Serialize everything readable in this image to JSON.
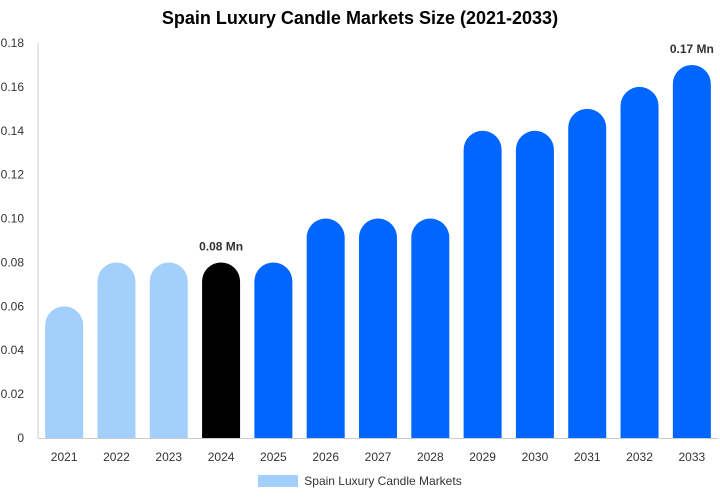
{
  "chart_data": {
    "type": "bar",
    "title": "Spain Luxury Candle Markets Size (2021-2033)",
    "xlabel": "",
    "ylabel": "",
    "categories": [
      "2021",
      "2022",
      "2023",
      "2024",
      "2025",
      "2026",
      "2027",
      "2028",
      "2029",
      "2030",
      "2031",
      "2032",
      "2033"
    ],
    "series": [
      {
        "name": "Spain Luxury Candle Markets",
        "values": [
          0.06,
          0.08,
          0.08,
          0.08,
          0.08,
          0.1,
          0.1,
          0.1,
          0.14,
          0.14,
          0.15,
          0.16,
          0.17
        ]
      }
    ],
    "ylim": [
      0,
      0.18
    ],
    "yticks": [
      "0",
      "0.02",
      "0.04",
      "0.06",
      "0.08",
      "0.10",
      "0.12",
      "0.14",
      "0.16",
      "0.18"
    ],
    "data_labels": [
      {
        "category": "2024",
        "text": "0.08 Mn"
      },
      {
        "category": "2033",
        "text": "0.17 Mn"
      }
    ],
    "bar_colors": {
      "historical": "#a3cffd",
      "base_year": "#000000",
      "forecast": "#0066ff"
    },
    "color_by_category": [
      "historical",
      "historical",
      "historical",
      "base_year",
      "forecast",
      "forecast",
      "forecast",
      "forecast",
      "forecast",
      "forecast",
      "forecast",
      "forecast",
      "forecast"
    ],
    "grid": false,
    "legend": {
      "position": "bottom",
      "label": "Spain Luxury Candle Markets",
      "color": "#a3cffd"
    }
  }
}
